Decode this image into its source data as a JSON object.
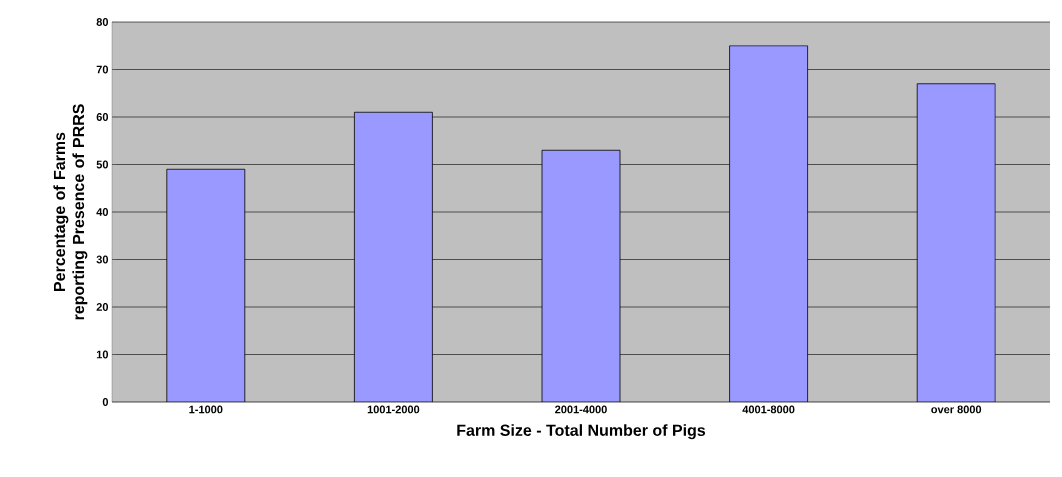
{
  "chart_data": {
    "type": "bar",
    "xlabel": "Farm Size - Total Number of Pigs",
    "ylabel": "Percentage of Farms reporting Presence of PRRS",
    "categories": [
      "1-1000",
      "1001-2000",
      "2001-4000",
      "4001-8000",
      "over 8000"
    ],
    "values": [
      49,
      61,
      53,
      75,
      67
    ],
    "color": "#9999ff",
    "ylim": [
      0,
      80
    ],
    "yticks": [
      0,
      10,
      20,
      30,
      40,
      50,
      60,
      70,
      80
    ],
    "grid": "y"
  }
}
